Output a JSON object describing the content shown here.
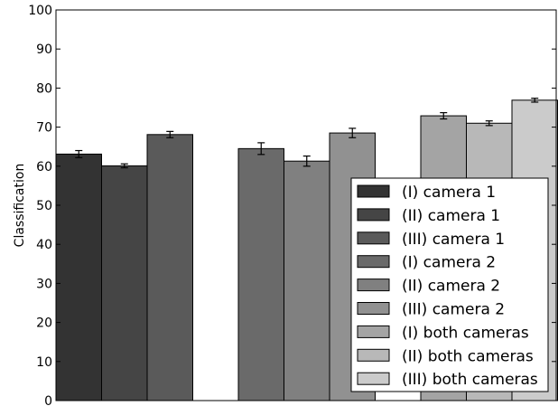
{
  "chart_data": {
    "type": "bar",
    "title": "",
    "xlabel": "",
    "ylabel": "Classification",
    "ylim": [
      0,
      100
    ],
    "yticks": [
      0,
      10,
      20,
      30,
      40,
      50,
      60,
      70,
      80,
      90,
      100
    ],
    "grid": false,
    "legend_position": "lower-right",
    "series": [
      {
        "name": "(I) camera 1",
        "value": 63.1,
        "error": 0.9,
        "color": "#333333"
      },
      {
        "name": "(II) camera 1",
        "value": 60.1,
        "error": 0.5,
        "color": "#454545"
      },
      {
        "name": "(III) camera 1",
        "value": 68.1,
        "error": 0.8,
        "color": "#5a5a5a"
      },
      {
        "name": "(I) camera 2",
        "value": 64.5,
        "error": 1.5,
        "color": "#6a6a6a"
      },
      {
        "name": "(II) camera 2",
        "value": 61.3,
        "error": 1.3,
        "color": "#808080"
      },
      {
        "name": "(III) camera 2",
        "value": 68.5,
        "error": 1.2,
        "color": "#919191"
      },
      {
        "name": "(I) both cameras",
        "value": 72.9,
        "error": 0.8,
        "color": "#a4a4a4"
      },
      {
        "name": "(II) both cameras",
        "value": 71.0,
        "error": 0.6,
        "color": "#b8b8b8"
      },
      {
        "name": "(III) both cameras",
        "value": 76.9,
        "error": 0.5,
        "color": "#cbcbcb"
      }
    ]
  }
}
